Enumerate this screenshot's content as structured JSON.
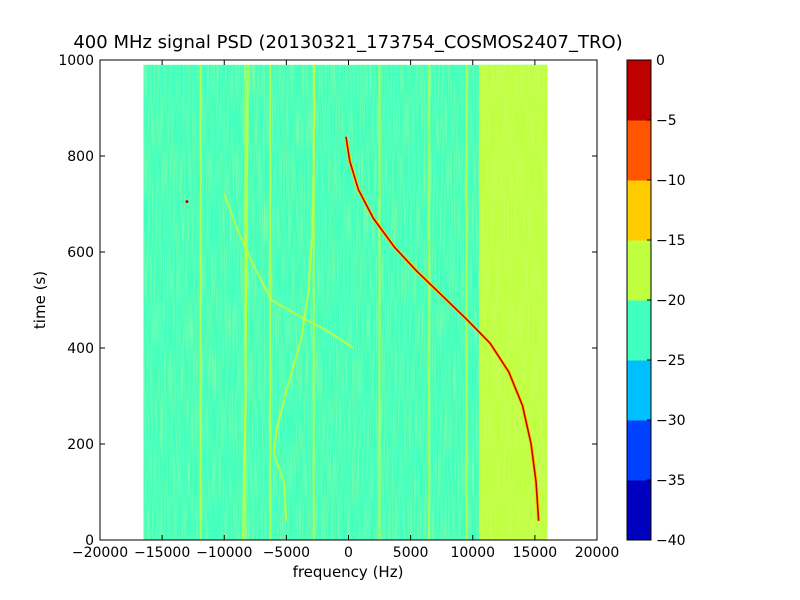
{
  "chart_data": {
    "type": "heatmap",
    "title": "400 MHz signal PSD (20130321_173754_COSMOS2407_TRO)",
    "xlabel": "frequency (Hz)",
    "ylabel": "time (s)",
    "xlim": [
      -20000,
      20000
    ],
    "ylim": [
      0,
      1000
    ],
    "xticks": [
      -20000,
      -15000,
      -10000,
      -5000,
      0,
      5000,
      10000,
      15000,
      20000
    ],
    "xtick_labels": [
      "−20000",
      "−15000",
      "−10000",
      "−5000",
      "0",
      "5000",
      "10000",
      "15000",
      "20000"
    ],
    "yticks": [
      0,
      200,
      400,
      600,
      800,
      1000
    ],
    "ytick_labels": [
      "0",
      "200",
      "400",
      "600",
      "800",
      "1000"
    ],
    "data_extent": {
      "freq_min": -16500,
      "freq_max": 16000,
      "time_min": 0,
      "time_max": 990
    },
    "colorbar": {
      "levels": [
        -40,
        -35,
        -30,
        -25,
        -20,
        -15,
        -10,
        -5,
        0
      ],
      "tick_labels": [
        "−40",
        "−35",
        "−30",
        "−25",
        "−20",
        "−15",
        "−10",
        "−5",
        "0"
      ],
      "colors": [
        "#0000bf",
        "#0041ff",
        "#00bfff",
        "#40ffbf",
        "#bfff40",
        "#ffcc00",
        "#ff5500",
        "#bf0000"
      ]
    },
    "background_level": -22.5,
    "edge_band": {
      "freq_start": 10500,
      "freq_end": 16000,
      "level": -17.5
    },
    "doppler_trace": {
      "level": -2.5,
      "points": [
        [
          15300,
          40
        ],
        [
          15100,
          120
        ],
        [
          14700,
          200
        ],
        [
          14000,
          280
        ],
        [
          12900,
          350
        ],
        [
          11400,
          410
        ],
        [
          9500,
          460
        ],
        [
          7500,
          510
        ],
        [
          5500,
          560
        ],
        [
          3700,
          610
        ],
        [
          2000,
          670
        ],
        [
          800,
          730
        ],
        [
          100,
          790
        ],
        [
          -200,
          840
        ]
      ]
    },
    "secondary_traces": [
      {
        "level": -17.5,
        "points": [
          [
            -10000,
            720
          ],
          [
            -9000,
            650
          ],
          [
            -7800,
            580
          ],
          [
            -6200,
            500
          ],
          [
            -4200,
            470
          ],
          [
            -2000,
            440
          ],
          [
            400,
            400
          ]
        ]
      },
      {
        "level": -17.5,
        "points": [
          [
            -5000,
            40
          ],
          [
            -5200,
            120
          ],
          [
            -6000,
            180
          ],
          [
            -5800,
            230
          ],
          [
            -4900,
            320
          ],
          [
            -3800,
            420
          ],
          [
            -3200,
            520
          ],
          [
            -2900,
            650
          ],
          [
            -2800,
            800
          ],
          [
            -2750,
            990
          ]
        ]
      },
      {
        "level": -17.5,
        "points": [
          [
            -8500,
            0
          ],
          [
            -8300,
            300
          ],
          [
            -8200,
            600
          ],
          [
            -8100,
            990
          ]
        ]
      }
    ],
    "vertical_lines": [
      {
        "freq": -11900,
        "level": -17.5
      },
      {
        "freq": -8300,
        "level": -17.5
      },
      {
        "freq": -6300,
        "level": -17.5
      },
      {
        "freq": -2800,
        "level": -17.5
      },
      {
        "freq": 2500,
        "level": -17.5
      },
      {
        "freq": 6500,
        "level": -17.5
      },
      {
        "freq": 9500,
        "level": -17.5
      }
    ],
    "spots": [
      {
        "freq": -13000,
        "time": 705,
        "level": -2.5
      }
    ]
  }
}
